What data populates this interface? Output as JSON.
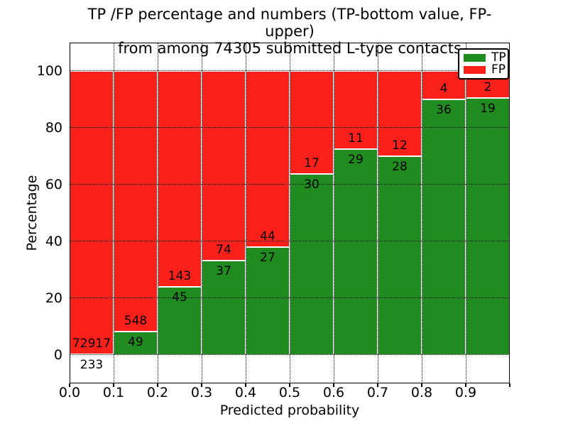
{
  "chart_data": {
    "type": "bar",
    "stacked": true,
    "normalized": "percent",
    "title": "TP /FP percentage and numbers (TP-bottom value, FP-upper) from among 74305 submitted L-type contacts",
    "title_line1": "TP /FP percentage and numbers (TP-bottom value, FP-upper)",
    "title_line2": "from among 74305 submitted L-type contacts",
    "total_submitted_contacts": 74305,
    "xlabel": "Predicted probability",
    "ylabel": "Percentage",
    "xlim": [
      0.0,
      1.0
    ],
    "ylim": [
      -10,
      110
    ],
    "x_tick_labels": [
      "0.0",
      "0.1",
      "0.2",
      "0.3",
      "0.4",
      "0.5",
      "0.6",
      "0.7",
      "0.8",
      "0.9"
    ],
    "y_ticks": [
      0,
      20,
      40,
      60,
      80,
      100
    ],
    "grid": "dotted black, drawn above bars",
    "bar_edge_color": "#ffffff",
    "categories": [
      "0.0-0.1",
      "0.1-0.2",
      "0.2-0.3",
      "0.3-0.4",
      "0.4-0.5",
      "0.5-0.6",
      "0.6-0.7",
      "0.7-0.8",
      "0.8-0.9",
      "0.9-1.0"
    ],
    "series": [
      {
        "name": "TP",
        "color": "#208c20",
        "counts": [
          233,
          49,
          45,
          37,
          27,
          30,
          29,
          28,
          36,
          19
        ]
      },
      {
        "name": "FP",
        "color": "#fb201a",
        "counts": [
          72917,
          548,
          143,
          74,
          44,
          17,
          11,
          12,
          4,
          2
        ]
      }
    ],
    "tp_percent": [
      0.32,
      8.21,
      23.94,
      33.33,
      38.03,
      63.83,
      72.5,
      70.0,
      90.0,
      90.48
    ],
    "legend": {
      "position": "upper right",
      "entries": [
        {
          "label": "TP",
          "color": "#208c20"
        },
        {
          "label": "FP",
          "color": "#fb201a"
        }
      ]
    }
  }
}
